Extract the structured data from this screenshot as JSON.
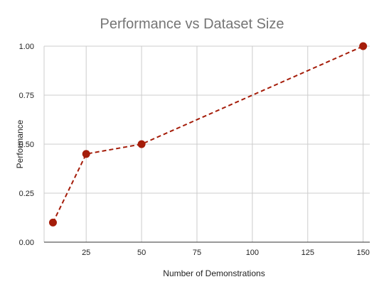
{
  "chart_data": {
    "type": "line",
    "title": "Performance vs Dataset Size",
    "xlabel": "Number of Demonstrations",
    "ylabel": "Performance",
    "xlim": [
      6,
      153
    ],
    "ylim": [
      0,
      1
    ],
    "xticks": [
      25,
      50,
      75,
      100,
      125,
      150
    ],
    "yticks": [
      0,
      0.25,
      0.5,
      0.75,
      1
    ],
    "ytick_labels": [
      "0.00",
      "0.25",
      "0.50",
      "0.75",
      "1.00"
    ],
    "grid": true,
    "legend": "none",
    "series": [
      {
        "x": [
          10,
          25,
          50,
          150
        ],
        "values": [
          0.1,
          0.45,
          0.5,
          1.0
        ],
        "color": "#a51d0a",
        "line_style": "dashed",
        "marker": "circle"
      }
    ]
  }
}
